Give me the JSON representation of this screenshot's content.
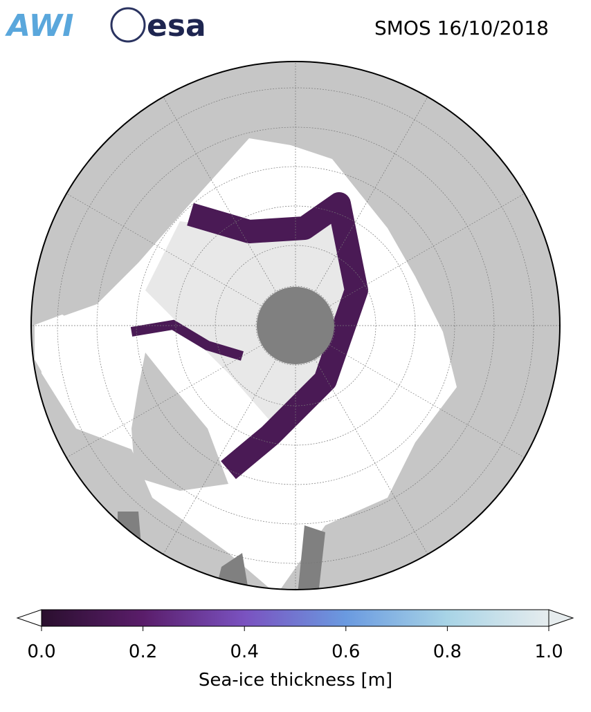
{
  "header": {
    "logos": {
      "awi": "AWI",
      "esa": "esa"
    },
    "title": "SMOS 16/10/2018"
  },
  "map": {
    "colorbar": {
      "label": "Sea-ice thickness [m]",
      "lim": [
        0,
        1
      ],
      "ticks": [
        {
          "value": 0,
          "label": "0.0"
        },
        {
          "value": 0.2,
          "label": "0.2"
        },
        {
          "value": 0.4,
          "label": "0.4"
        },
        {
          "value": 0.6,
          "label": "0.6"
        },
        {
          "value": 0.8,
          "label": "0.8"
        },
        {
          "value": 1,
          "label": "1.0"
        }
      ],
      "colors": [
        "#2a0f2e",
        "#5a1d6a",
        "#7a52c0",
        "#6a9ae0",
        "#a8d4e6",
        "#e6ecee"
      ]
    }
  }
}
